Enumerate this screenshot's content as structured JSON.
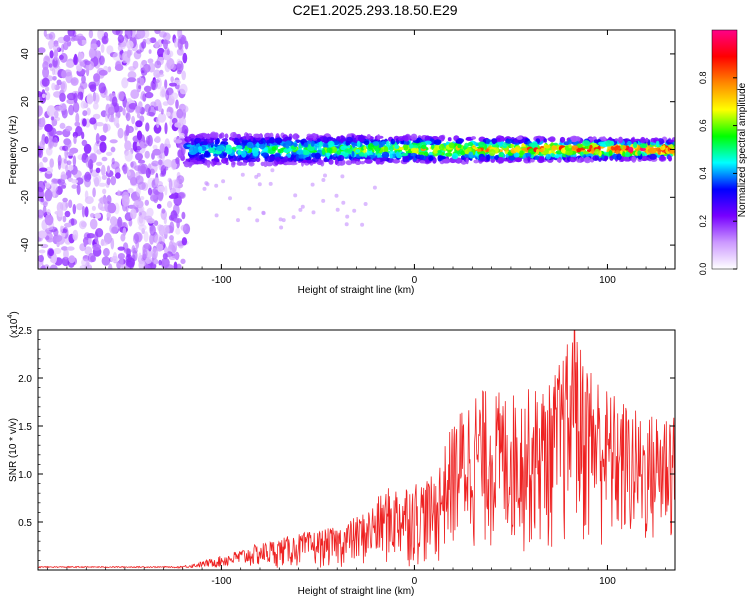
{
  "title": "C2E1.2025.293.18.50.E29",
  "chart_data": [
    {
      "type": "heatmap",
      "id": "spectrogram",
      "xlabel": "Height of straight line (km)",
      "ylabel": "Frequency (Hz)",
      "xlim": [
        -195,
        135
      ],
      "ylim": [
        -50,
        50
      ],
      "xticks": [
        -100,
        0,
        100
      ],
      "xtick_labels": [
        "-100",
        "0",
        "100"
      ],
      "yticks": [
        -40,
        -20,
        0,
        20,
        40
      ],
      "ytick_labels": [
        "-40",
        "-20",
        "0",
        "20",
        "40"
      ],
      "noise_region_x": [
        -195,
        -118
      ],
      "signal_band_hz": [
        -5,
        5
      ],
      "signal_center_hz": 0,
      "colorbar": {
        "label": "Normalized spectral amplitude",
        "range": [
          0,
          1
        ],
        "ticks": [
          0.0,
          0.2,
          0.4,
          0.6,
          0.8
        ],
        "tick_labels": [
          "0.0",
          "0.2",
          "0.4",
          "0.6",
          "0.8"
        ],
        "colors": [
          "#ffffff",
          "#cc99ff",
          "#7700ff",
          "#0000ff",
          "#00ffff",
          "#00ff00",
          "#ffff00",
          "#ff8800",
          "#ff0000",
          "#ff0088"
        ]
      }
    },
    {
      "type": "line",
      "id": "snr",
      "xlabel": "Height of straight line (km)",
      "ylabel": "SNR (10 * v/v)",
      "y_multiplier": "(x10^4)",
      "y_multiplier_base": "(x10",
      "y_multiplier_exp": "4",
      "y_multiplier_close": ")",
      "xlim": [
        -195,
        135
      ],
      "ylim": [
        0,
        2.5
      ],
      "xticks": [
        -100,
        0,
        100
      ],
      "xtick_labels": [
        "-100",
        "0",
        "100"
      ],
      "yticks": [
        0.5,
        1.0,
        1.5,
        2.0,
        2.5
      ],
      "ytick_labels": [
        "0.5",
        "1.0",
        "1.5",
        "2.0",
        "2.5"
      ],
      "color": "#ee2222",
      "envelope": [
        {
          "x": -195,
          "y": 0.03
        },
        {
          "x": -125,
          "y": 0.03
        },
        {
          "x": -115,
          "y": 0.06
        },
        {
          "x": -100,
          "y": 0.15
        },
        {
          "x": -80,
          "y": 0.28
        },
        {
          "x": -60,
          "y": 0.38
        },
        {
          "x": -40,
          "y": 0.45
        },
        {
          "x": -25,
          "y": 0.62
        },
        {
          "x": -15,
          "y": 0.85
        },
        {
          "x": -5,
          "y": 0.92
        },
        {
          "x": 10,
          "y": 0.98
        },
        {
          "x": 20,
          "y": 1.55
        },
        {
          "x": 30,
          "y": 1.9
        },
        {
          "x": 50,
          "y": 1.85
        },
        {
          "x": 70,
          "y": 1.95
        },
        {
          "x": 82,
          "y": 2.5
        },
        {
          "x": 100,
          "y": 1.9
        },
        {
          "x": 120,
          "y": 1.6
        },
        {
          "x": 135,
          "y": 1.8
        }
      ],
      "peak": {
        "x": 83,
        "y": 2.5
      }
    }
  ]
}
